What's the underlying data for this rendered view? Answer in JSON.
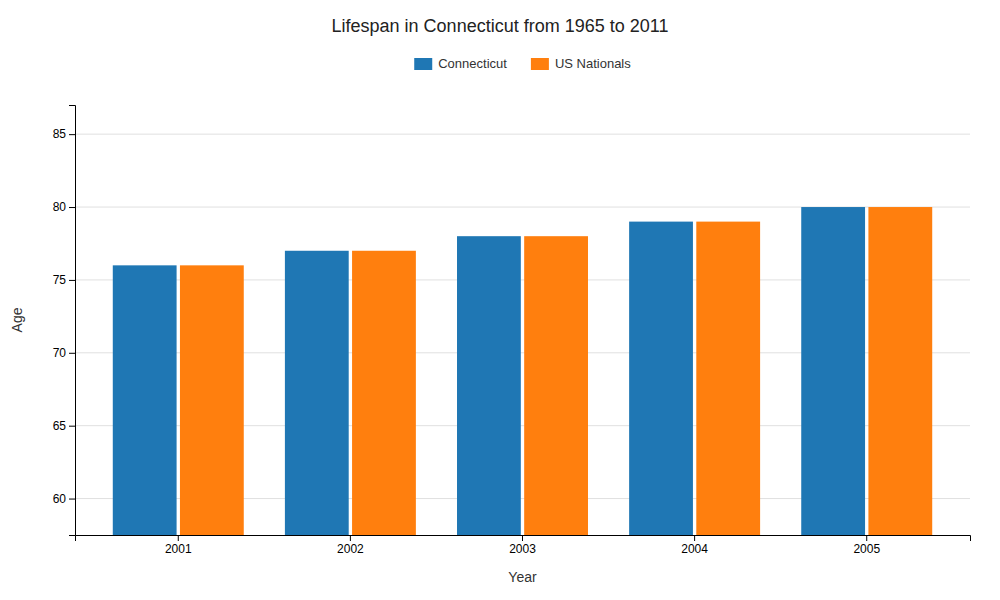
{
  "chart_data": {
    "type": "bar",
    "title": "Lifespan in Connecticut from 1965 to 2011",
    "xlabel": "Year",
    "ylabel": "Age",
    "categories": [
      "2001",
      "2002",
      "2003",
      "2004",
      "2005"
    ],
    "series": [
      {
        "name": "Connecticut",
        "values": [
          76,
          77,
          78,
          79,
          80
        ]
      },
      {
        "name": "US Nationals",
        "values": [
          76,
          77,
          78,
          79,
          80
        ]
      }
    ],
    "ylim": [
      57.5,
      87
    ],
    "yticks": [
      60,
      65,
      70,
      75,
      80,
      85
    ],
    "grid": true,
    "legend": "top"
  }
}
